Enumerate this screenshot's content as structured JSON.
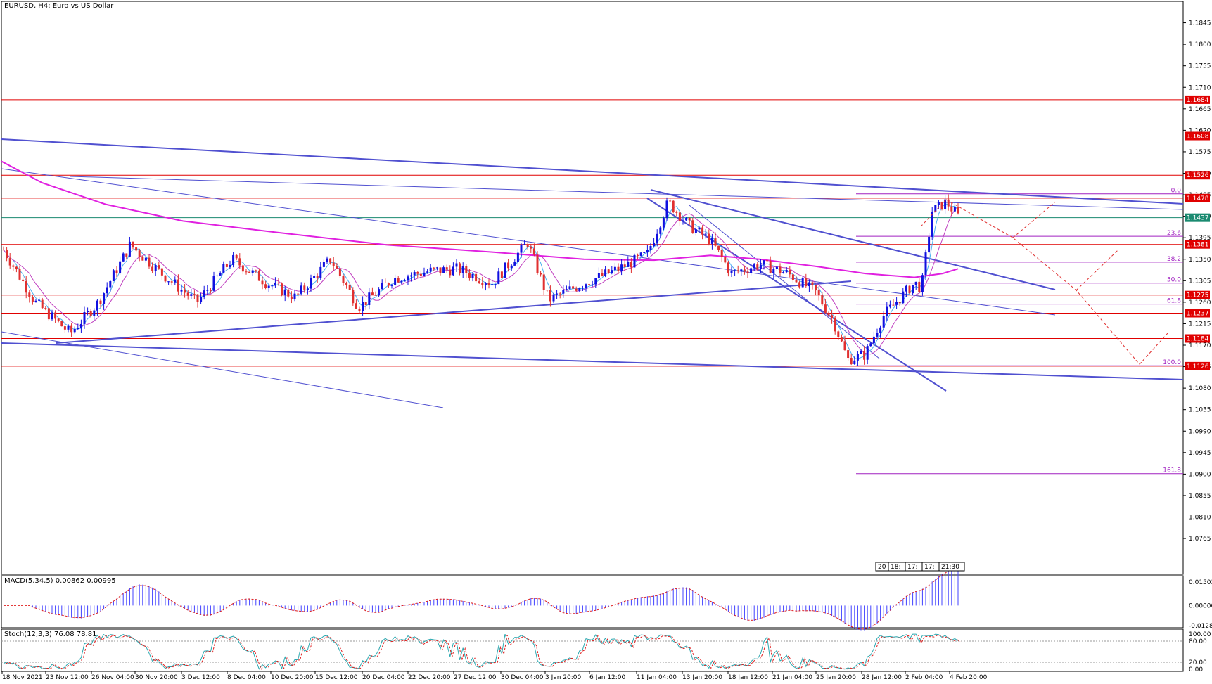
{
  "window": {
    "title": "EURUSD, H4:  Euro vs US Dollar",
    "symbol": "EURUSD",
    "timeframe": "H4"
  },
  "macd": {
    "label": "MACD(5,34,5) 0.00862 0.00995"
  },
  "stoch": {
    "label": "Stoch(12,3,3) 76.08 78.81"
  },
  "scroll_labels": [
    "20",
    "18:",
    "17:",
    "17:",
    "21:30"
  ],
  "colors": {
    "background": "#ffffff",
    "axis": "#000000",
    "resistance_line": "#e00000",
    "price_tag_bg": "#e00000",
    "price_tag_text": "#ffffff",
    "current_price_line": "#1a8a70",
    "trendline": "#5050d0",
    "ma_slow": "#e020e0",
    "fib": "#a020c0",
    "bull_candle": "#1010e0",
    "bear_candle": "#e03030",
    "projection": "#e03030",
    "macd_hist": "#4040ff",
    "macd_signal": "#e02020",
    "stoch_main": "#2aa8b0",
    "stoch_signal": "#e02020"
  },
  "chart_data": {
    "type": "candlestick",
    "ylim": [
      1.069,
      1.189
    ],
    "price_ticks": [
      "1.1845",
      "1.1800",
      "1.1755",
      "1.1710",
      "1.1665",
      "1.1620",
      "1.1575",
      "1.1530",
      "1.1485",
      "1.1440",
      "1.1395",
      "1.1350",
      "1.1305",
      "1.1260",
      "1.1215",
      "1.1170",
      "1.1125",
      "1.1080",
      "1.1035",
      "1.0990",
      "1.0945",
      "1.0900",
      "1.0855",
      "1.0810",
      "1.0765"
    ],
    "time_labels": [
      "18 Nov 2021",
      "23 Nov 12:00",
      "26 Nov 04:00",
      "30 Nov 20:00",
      "3 Dec 12:00",
      "8 Dec 04:00",
      "10 Dec 20:00",
      "15 Dec 12:00",
      "20 Dec 04:00",
      "22 Dec 20:00",
      "27 Dec 12:00",
      "30 Dec 04:00",
      "3 Jan 20:00",
      "6 Jan 12:00",
      "11 Jan 04:00",
      "13 Jan 20:00",
      "18 Jan 12:00",
      "21 Jan 04:00",
      "25 Jan 20:00",
      "28 Jan 12:00",
      "2 Feb 04:00",
      "4 Feb 20:00"
    ],
    "levels": [
      {
        "label": "1.1684",
        "value": 1.1684
      },
      {
        "label": "1.1608",
        "value": 1.1608
      },
      {
        "label": "1.1526",
        "value": 1.1526
      },
      {
        "label": "1.1478",
        "value": 1.1478
      },
      {
        "label": "1.1381",
        "value": 1.1381
      },
      {
        "label": "1.1275",
        "value": 1.1275
      },
      {
        "label": "1.1237",
        "value": 1.1237
      },
      {
        "label": "1.1184",
        "value": 1.1184
      },
      {
        "label": "1.1126",
        "value": 1.1126
      }
    ],
    "current_price": {
      "label": "1.1437",
      "value": 1.1437
    },
    "fibonacci": [
      {
        "label": "0.0",
        "value": 1.1487
      },
      {
        "label": "23.6",
        "value": 1.1398
      },
      {
        "label": "38.2",
        "value": 1.1344
      },
      {
        "label": "50.0",
        "value": 1.13
      },
      {
        "label": "61.8",
        "value": 1.1256
      },
      {
        "label": "100.0",
        "value": 1.1127
      },
      {
        "label": "161.8",
        "value": 1.0901
      }
    ],
    "macd": {
      "ylim": [
        -0.01284,
        0.01503
      ],
      "ticks": [
        "0.01503",
        "0.00000",
        "-0.01284"
      ],
      "value": 0.00862,
      "signal": 0.00995
    },
    "stoch": {
      "ylim": [
        0,
        100
      ],
      "ticks": [
        "100.00",
        "80.00",
        "20.00",
        "0.00"
      ],
      "main": 76.08,
      "signal": 78.81
    }
  }
}
